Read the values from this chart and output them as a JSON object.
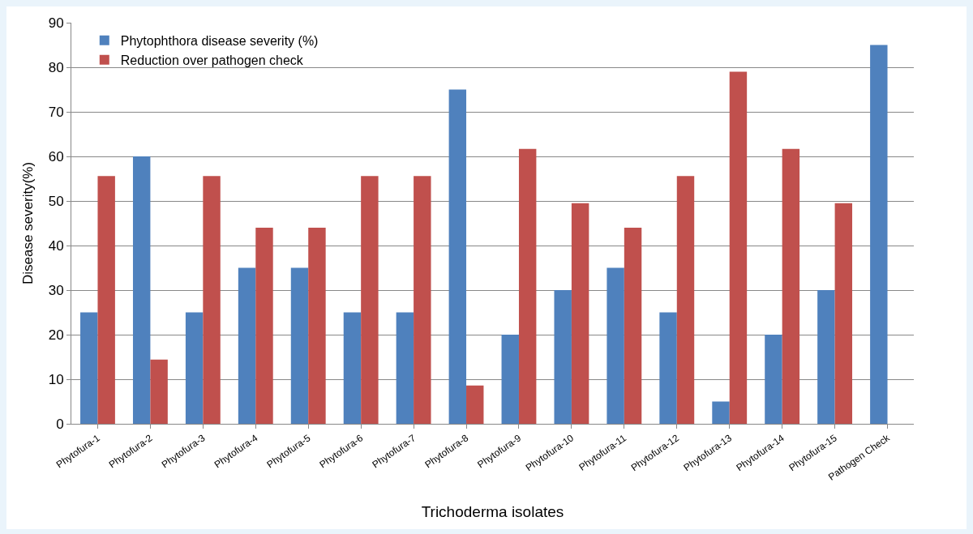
{
  "chart_data": {
    "type": "bar",
    "xlabel": "Trichoderma isolates",
    "ylabel": "Disease severity(%)",
    "categories": [
      "Phytofura-1",
      "Phytofura-2",
      "Phytofura-3",
      "Phytofura-4",
      "Phytofura-5",
      "Phytofura-6",
      "Phytofura-7",
      "Phytofura-8",
      "Phytofura-9",
      "Phytofura-10",
      "Phytofura-11",
      "Phytofura-12",
      "Phytofura-13",
      "Phytofura-14",
      "Phytofura-15",
      "Pathogen Check"
    ],
    "series": [
      {
        "name": "Phytophthora disease severity (%)",
        "color": "#4f81bd",
        "values": [
          25,
          60,
          25,
          35,
          35,
          25,
          25,
          75,
          20,
          30,
          35,
          25,
          5,
          20,
          30,
          85
        ]
      },
      {
        "name": "Reduction over pathogen check",
        "color": "#c0504d",
        "values": [
          55.6,
          14.4,
          55.6,
          44,
          44,
          55.6,
          55.6,
          8.6,
          61.7,
          49.5,
          44,
          55.6,
          79,
          61.7,
          49.5,
          null
        ]
      }
    ],
    "ylim": [
      0,
      90
    ],
    "yticks": [
      0,
      10,
      20,
      30,
      40,
      50,
      60,
      70,
      80,
      90
    ],
    "grid": "y",
    "legend": "top left"
  }
}
